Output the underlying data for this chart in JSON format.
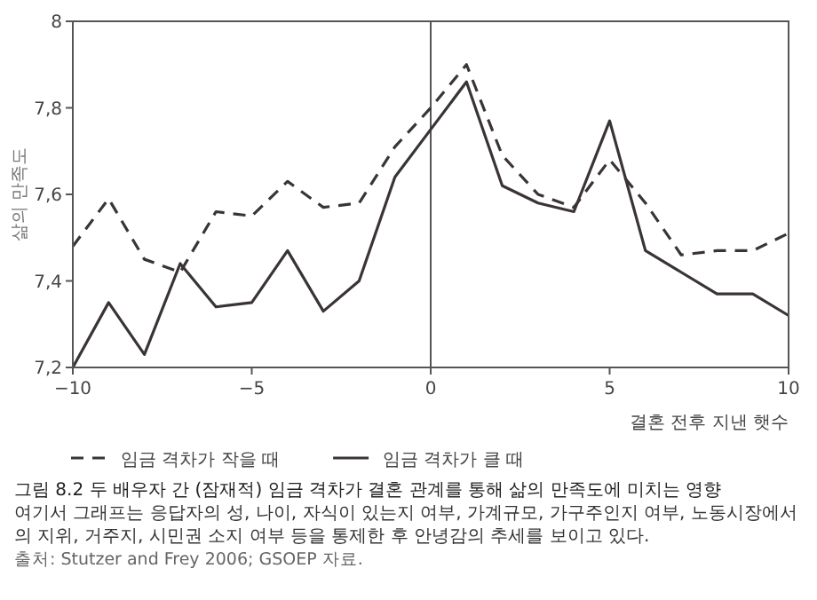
{
  "chart_data": {
    "type": "line",
    "title": "그림 8.2 두 배우자 간 (잠재적) 임금 격차가 결혼 관계를 통해 삶의 만족도에 미치는 영향",
    "xlabel": "결혼 전후 지낸 햇수",
    "ylabel": "삶의 만족도",
    "x": [
      -10,
      -9,
      -8,
      -7,
      -6,
      -5,
      -4,
      -3,
      -2,
      -1,
      0,
      1,
      2,
      3,
      4,
      5,
      6,
      7,
      8,
      9,
      10
    ],
    "series": [
      {
        "name": "임금 격차가 작을 때",
        "color": "#3a3434",
        "line_style": "dashed",
        "values": [
          7.48,
          7.59,
          7.45,
          7.42,
          7.56,
          7.55,
          7.63,
          7.57,
          7.58,
          7.71,
          7.8,
          7.9,
          7.69,
          7.6,
          7.57,
          7.68,
          7.58,
          7.46,
          7.47,
          7.47,
          7.51
        ]
      },
      {
        "name": "임금 격차가 클 때",
        "color": "#3a3434",
        "line_style": "solid",
        "values": [
          7.2,
          7.35,
          7.23,
          7.44,
          7.34,
          7.35,
          7.47,
          7.33,
          7.4,
          7.64,
          7.75,
          7.86,
          7.62,
          7.58,
          7.56,
          7.77,
          7.47,
          7.42,
          7.37,
          7.37,
          7.32
        ]
      }
    ],
    "xlim": [
      -10,
      10
    ],
    "ylim": [
      7.2,
      8
    ],
    "xticks": [
      {
        "value": -10,
        "label": "−10"
      },
      {
        "value": -5,
        "label": "−5"
      },
      0,
      5,
      10
    ],
    "yticks": [
      {
        "value": 7.2,
        "label": "7,2"
      },
      {
        "value": 7.4,
        "label": "7,4"
      },
      {
        "value": 7.6,
        "label": "7,6"
      },
      {
        "value": 7.8,
        "label": "7,8"
      },
      8
    ],
    "ref_lines": [
      {
        "axis": "x",
        "value": 0,
        "color": "#555555"
      }
    ],
    "marker": "none",
    "grid": false,
    "legend": "bottom",
    "annotations": [
      "여기서 그래프는 응답자의 성, 나이, 자식이 있는지 여부, 가계규모, 가구주인지 여부, 노동시장에서의 지위, 거주지, 시민권 소지 여부 등을 통제한 후 안녕감의 추세를 보이고 있다.",
      "출처: Stutzer and Frey 2006; GSOEP 자료."
    ]
  }
}
